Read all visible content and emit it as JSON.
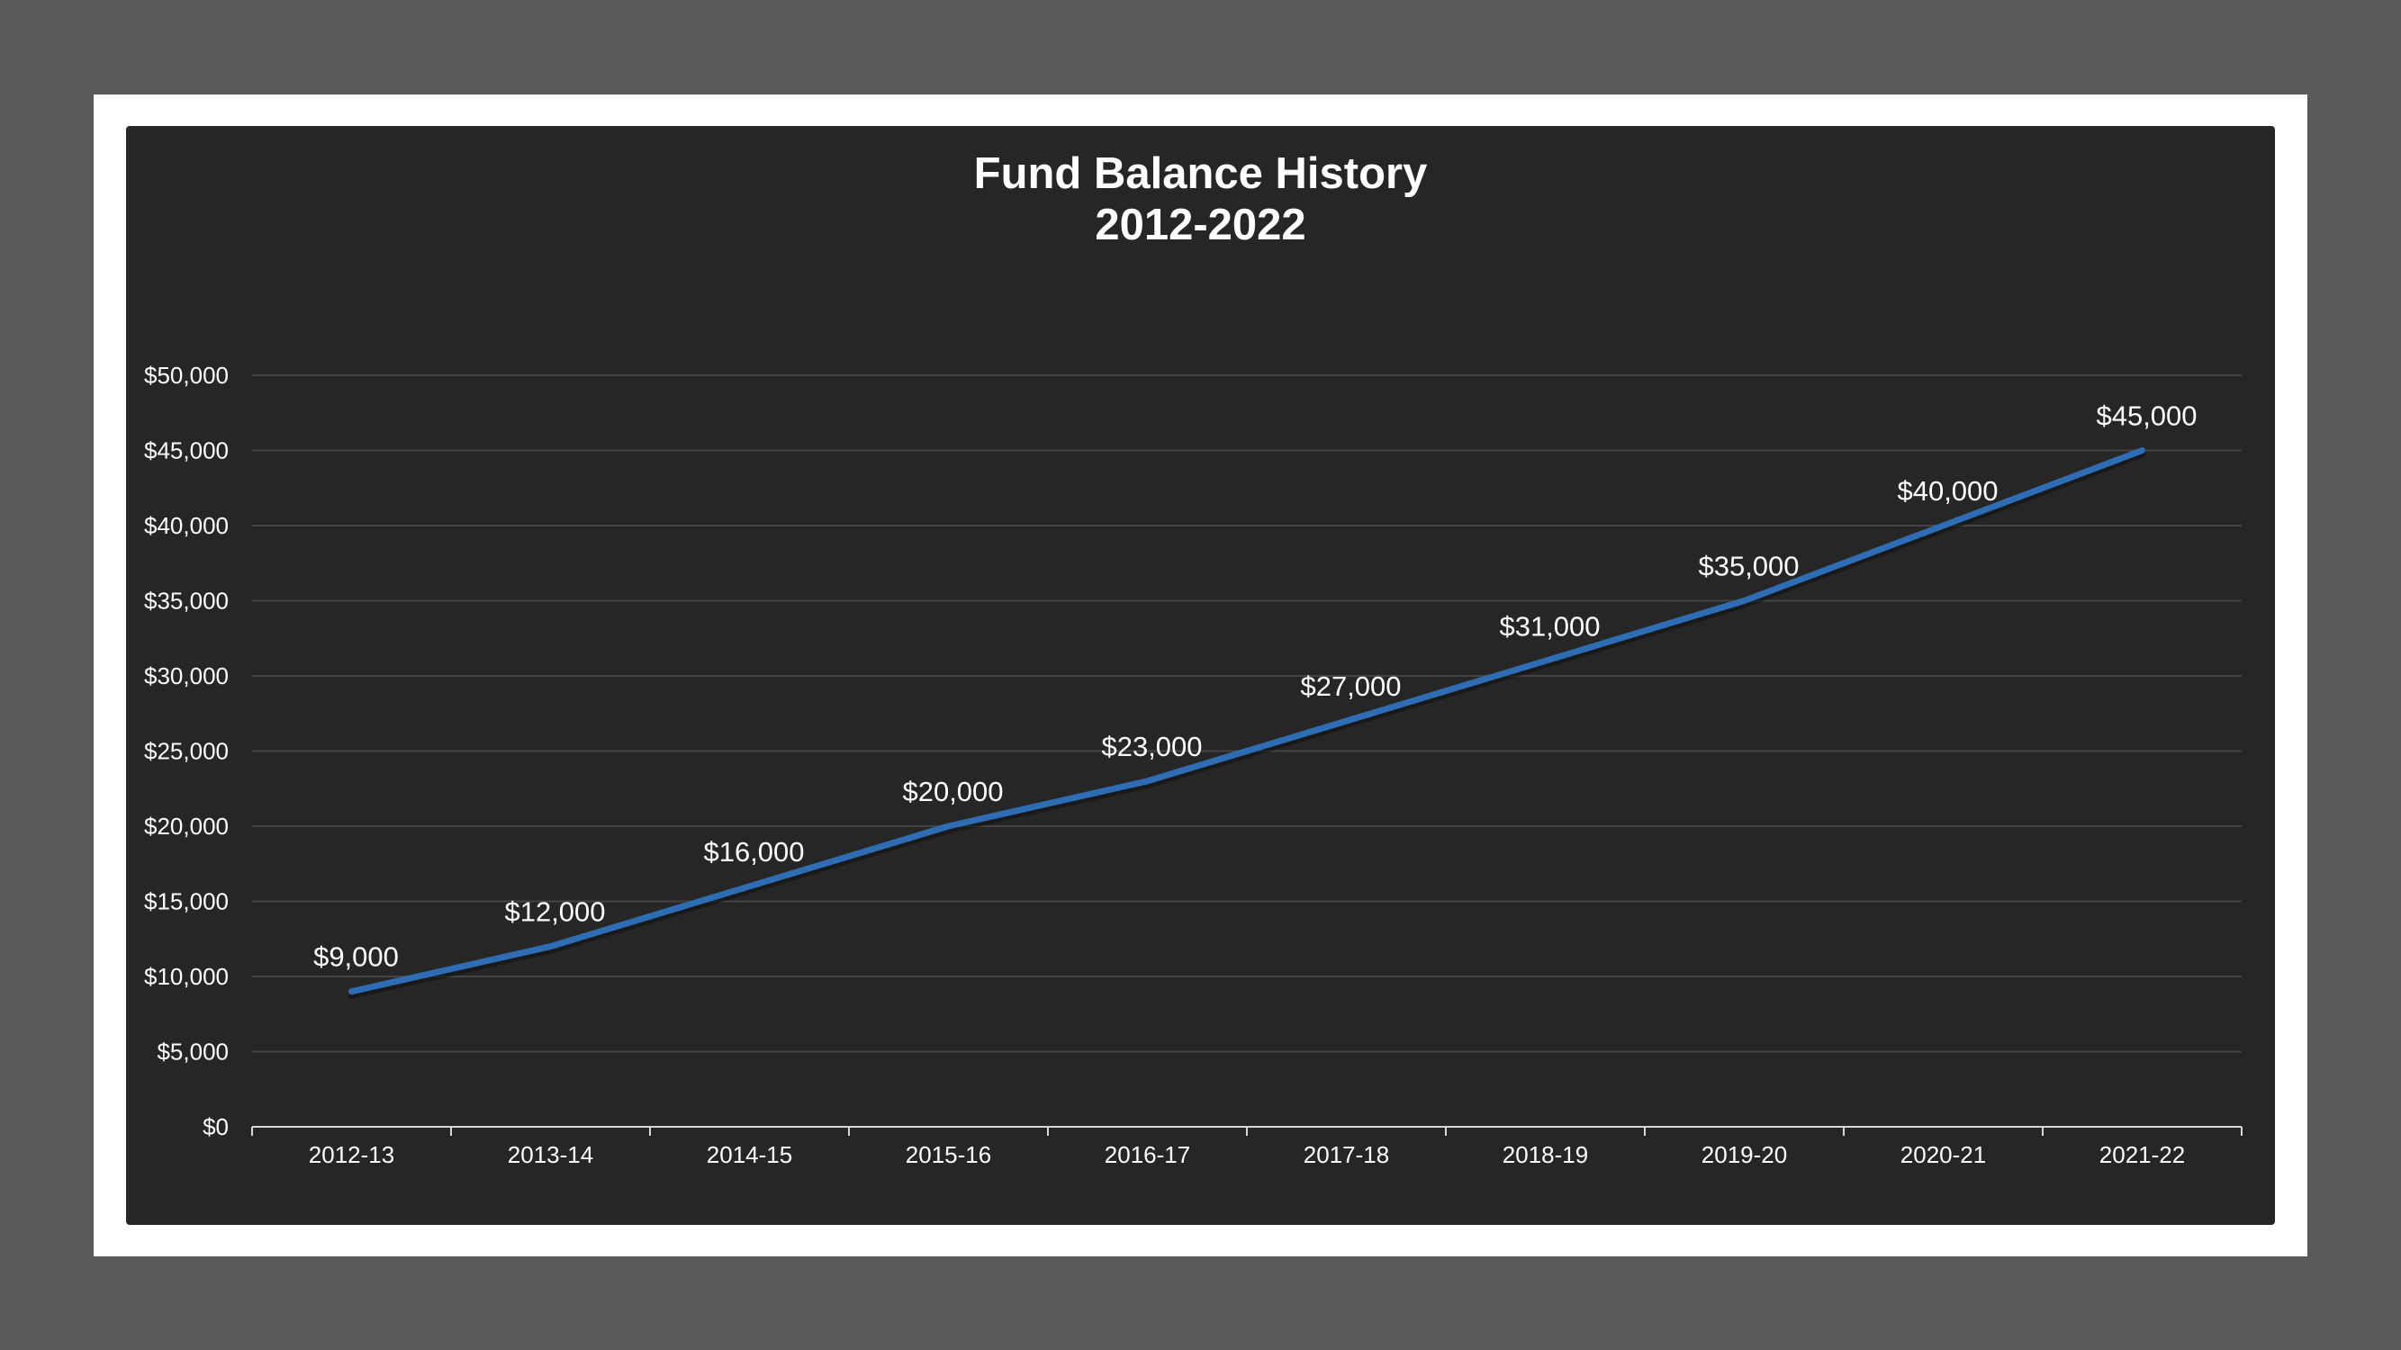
{
  "chart_data": {
    "type": "line",
    "title": "Fund Balance History",
    "subtitle": "2012-2022",
    "xlabel": "",
    "ylabel": "",
    "categories": [
      "2012-13",
      "2013-14",
      "2014-15",
      "2015-16",
      "2016-17",
      "2017-18",
      "2018-19",
      "2019-20",
      "2020-21",
      "2021-22"
    ],
    "series": [
      {
        "values": [
          9000,
          12000,
          16000,
          20000,
          23000,
          27000,
          31000,
          35000,
          40000,
          45000
        ],
        "data_labels": [
          "$9,000",
          "$12,000",
          "$16,000",
          "$20,000",
          "$23,000",
          "$27,000",
          "$31,000",
          "$35,000",
          "$40,000",
          "$45,000"
        ],
        "color": "#2e6db4"
      }
    ],
    "ylim": [
      0,
      50000
    ],
    "yticks": [
      0,
      5000,
      10000,
      15000,
      20000,
      25000,
      30000,
      35000,
      40000,
      45000,
      50000
    ],
    "ytick_labels": [
      "$0",
      "$5,000",
      "$10,000",
      "$15,000",
      "$20,000",
      "$25,000",
      "$30,000",
      "$35,000",
      "$40,000",
      "$45,000",
      "$50,000"
    ],
    "grid": true,
    "legend": "none"
  },
  "colors": {
    "background": "#5a5a5a",
    "frame": "#ffffff",
    "panel": "#262626",
    "gridline": "#444444",
    "axis": "#d9d9d9",
    "text": "#ffffff"
  }
}
